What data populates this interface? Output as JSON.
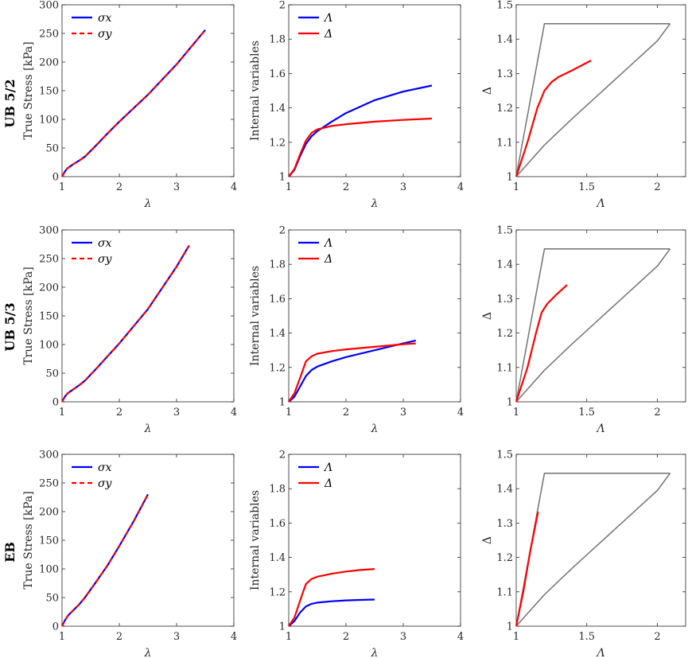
{
  "colors": {
    "sigma_x": "#0000ff",
    "sigma_y": "#ff0000",
    "Lambda": "#0000ff",
    "Delta": "#ff0000",
    "bound": "#7a7a7a",
    "axis": "#262626"
  },
  "rows": [
    {
      "label": "UB 5/2",
      "panels": [
        {
          "xlabel": "λ",
          "ylabel": "True Stress [kPa]"
        },
        {
          "xlabel": "λ",
          "ylabel": "Internal variables"
        },
        {
          "xlabel": "Λ",
          "ylabel": "Δ"
        }
      ]
    },
    {
      "label": "UB 5/3",
      "panels": [
        {
          "xlabel": "λ",
          "ylabel": "True Stress [kPa]"
        },
        {
          "xlabel": "λ",
          "ylabel": "Internal variables"
        },
        {
          "xlabel": "Λ",
          "ylabel": "Δ"
        }
      ]
    },
    {
      "label": "EB",
      "panels": [
        {
          "xlabel": "λ",
          "ylabel": "True Stress [kPa]"
        },
        {
          "xlabel": "λ",
          "ylabel": "Internal variables"
        },
        {
          "xlabel": "Λ",
          "ylabel": "Δ"
        }
      ]
    }
  ],
  "chart_data": [
    {
      "type": "line",
      "row": "UB 5/2",
      "xlabel": "λ",
      "ylabel": "True Stress [kPa]",
      "xlim": [
        1,
        4
      ],
      "ylim": [
        0,
        300
      ],
      "xticks": [
        "1",
        "2",
        "3",
        "4"
      ],
      "yticks": [
        "0",
        "50",
        "100",
        "150",
        "200",
        "250",
        "300"
      ],
      "legend": "top-left",
      "grid": false,
      "series": [
        {
          "name": "σx",
          "style": "solid",
          "color": "#0000ff",
          "x": [
            1,
            1.05,
            1.1,
            1.2,
            1.3,
            1.4,
            1.6,
            1.8,
            2.0,
            2.5,
            3.0,
            3.5
          ],
          "y": [
            0,
            9,
            15,
            22,
            28,
            35,
            55,
            76,
            96,
            143,
            196,
            256
          ]
        },
        {
          "name": "σy",
          "style": "dashed",
          "color": "#ff0000",
          "x": [
            1,
            1.05,
            1.1,
            1.2,
            1.3,
            1.4,
            1.6,
            1.8,
            2.0,
            2.5,
            3.0,
            3.5
          ],
          "y": [
            0,
            9,
            15,
            22,
            28,
            35,
            55,
            76,
            96,
            143,
            196,
            256
          ]
        }
      ]
    },
    {
      "type": "line",
      "row": "UB 5/2",
      "xlabel": "λ",
      "ylabel": "Internal variables",
      "xlim": [
        1,
        4
      ],
      "ylim": [
        1,
        2
      ],
      "xticks": [
        "1",
        "2",
        "3",
        "4"
      ],
      "yticks": [
        "1",
        "1.2",
        "1.4",
        "1.6",
        "1.8",
        "2"
      ],
      "legend": "top-left",
      "grid": false,
      "series": [
        {
          "name": "Λ",
          "style": "solid",
          "color": "#0000ff",
          "x": [
            1,
            1.1,
            1.2,
            1.3,
            1.4,
            1.5,
            1.75,
            2.0,
            2.5,
            3.0,
            3.5
          ],
          "y": [
            1,
            1.04,
            1.12,
            1.19,
            1.235,
            1.265,
            1.32,
            1.37,
            1.445,
            1.495,
            1.53
          ]
        },
        {
          "name": "Δ",
          "style": "solid",
          "color": "#ff0000",
          "x": [
            1,
            1.1,
            1.2,
            1.3,
            1.4,
            1.5,
            1.75,
            2.0,
            2.5,
            3.0,
            3.5
          ],
          "y": [
            1,
            1.045,
            1.13,
            1.21,
            1.255,
            1.275,
            1.295,
            1.305,
            1.32,
            1.33,
            1.338
          ]
        }
      ]
    },
    {
      "type": "line",
      "row": "UB 5/2",
      "xlabel": "Λ",
      "ylabel": "Δ",
      "xlim": [
        1,
        2.2
      ],
      "ylim": [
        1,
        1.5
      ],
      "xticks": [
        "1",
        "1.5",
        "2"
      ],
      "yticks": [
        "1",
        "1.1",
        "1.2",
        "1.3",
        "1.4",
        "1.5"
      ],
      "grid": false,
      "series": [
        {
          "style": "solid",
          "color": "#7a7a7a",
          "x": [
            1,
            1.2,
            2.09
          ],
          "y": [
            1,
            1.445,
            1.445
          ]
        },
        {
          "style": "solid",
          "color": "#7a7a7a",
          "x": [
            1,
            1.2,
            1.4,
            1.6,
            1.8,
            2.0,
            2.09
          ],
          "y": [
            1,
            1.092,
            1.17,
            1.245,
            1.32,
            1.395,
            1.445
          ]
        },
        {
          "style": "solid",
          "color": "#ff0000",
          "x": [
            1,
            1.08,
            1.15,
            1.2,
            1.25,
            1.3,
            1.4,
            1.53
          ],
          "y": [
            1,
            1.1,
            1.2,
            1.25,
            1.275,
            1.29,
            1.31,
            1.338
          ]
        }
      ]
    },
    {
      "type": "line",
      "row": "UB 5/3",
      "xlabel": "λ",
      "ylabel": "True Stress [kPa]",
      "xlim": [
        1,
        4
      ],
      "ylim": [
        0,
        300
      ],
      "xticks": [
        "1",
        "2",
        "3",
        "4"
      ],
      "yticks": [
        "0",
        "50",
        "100",
        "150",
        "200",
        "250",
        "300"
      ],
      "legend": "top-left",
      "grid": false,
      "series": [
        {
          "name": "σx",
          "style": "solid",
          "color": "#0000ff",
          "x": [
            1,
            1.05,
            1.1,
            1.2,
            1.3,
            1.4,
            1.6,
            1.8,
            2.0,
            2.5,
            3.0,
            3.22
          ],
          "y": [
            0,
            9,
            15,
            22,
            29,
            37,
            58,
            80,
            102,
            162,
            236,
            273
          ]
        },
        {
          "name": "σy",
          "style": "dashed",
          "color": "#ff0000",
          "x": [
            1,
            1.05,
            1.1,
            1.2,
            1.3,
            1.4,
            1.6,
            1.8,
            2.0,
            2.5,
            3.0,
            3.22
          ],
          "y": [
            0,
            9,
            15,
            22,
            29,
            37,
            58,
            80,
            102,
            162,
            236,
            273
          ]
        }
      ]
    },
    {
      "type": "line",
      "row": "UB 5/3",
      "xlabel": "λ",
      "ylabel": "Internal variables",
      "xlim": [
        1,
        4
      ],
      "ylim": [
        1,
        2
      ],
      "xticks": [
        "1",
        "2",
        "3",
        "4"
      ],
      "yticks": [
        "1",
        "1.2",
        "1.4",
        "1.6",
        "1.8",
        "2"
      ],
      "legend": "top-left",
      "grid": false,
      "series": [
        {
          "name": "Λ",
          "style": "solid",
          "color": "#0000ff",
          "x": [
            1,
            1.1,
            1.2,
            1.3,
            1.4,
            1.5,
            1.75,
            2.0,
            2.5,
            3.0,
            3.22
          ],
          "y": [
            1,
            1.03,
            1.09,
            1.15,
            1.185,
            1.205,
            1.235,
            1.26,
            1.3,
            1.34,
            1.357
          ]
        },
        {
          "name": "Δ",
          "style": "solid",
          "color": "#ff0000",
          "x": [
            1,
            1.1,
            1.2,
            1.3,
            1.4,
            1.5,
            1.75,
            2.0,
            2.5,
            3.0,
            3.22
          ],
          "y": [
            1,
            1.05,
            1.14,
            1.235,
            1.265,
            1.28,
            1.295,
            1.305,
            1.32,
            1.335,
            1.34
          ]
        }
      ]
    },
    {
      "type": "line",
      "row": "UB 5/3",
      "xlabel": "Λ",
      "ylabel": "Δ",
      "xlim": [
        1,
        2.2
      ],
      "ylim": [
        1,
        1.5
      ],
      "xticks": [
        "1",
        "1.5",
        "2"
      ],
      "yticks": [
        "1",
        "1.1",
        "1.2",
        "1.3",
        "1.4",
        "1.5"
      ],
      "grid": false,
      "series": [
        {
          "style": "solid",
          "color": "#7a7a7a",
          "x": [
            1,
            1.2,
            2.09
          ],
          "y": [
            1,
            1.445,
            1.445
          ]
        },
        {
          "style": "solid",
          "color": "#7a7a7a",
          "x": [
            1,
            1.2,
            1.4,
            1.6,
            1.8,
            2.0,
            2.09
          ],
          "y": [
            1,
            1.092,
            1.17,
            1.245,
            1.32,
            1.395,
            1.445
          ]
        },
        {
          "style": "solid",
          "color": "#ff0000",
          "x": [
            1,
            1.08,
            1.14,
            1.18,
            1.22,
            1.28,
            1.36
          ],
          "y": [
            1,
            1.1,
            1.2,
            1.26,
            1.285,
            1.31,
            1.34
          ]
        }
      ]
    },
    {
      "type": "line",
      "row": "EB",
      "xlabel": "λ",
      "ylabel": "True Stress [kPa]",
      "xlim": [
        1,
        4
      ],
      "ylim": [
        0,
        300
      ],
      "xticks": [
        "1",
        "2",
        "3",
        "4"
      ],
      "yticks": [
        "0",
        "50",
        "100",
        "150",
        "200",
        "250",
        "300"
      ],
      "legend": "top-left",
      "grid": false,
      "series": [
        {
          "name": "σx",
          "style": "solid",
          "color": "#0000ff",
          "x": [
            1,
            1.05,
            1.1,
            1.2,
            1.3,
            1.4,
            1.6,
            1.8,
            2.0,
            2.25,
            2.5
          ],
          "y": [
            0,
            10,
            18,
            28,
            38,
            50,
            78,
            107,
            140,
            183,
            230
          ]
        },
        {
          "name": "σy",
          "style": "dashed",
          "color": "#ff0000",
          "x": [
            1,
            1.05,
            1.1,
            1.2,
            1.3,
            1.4,
            1.6,
            1.8,
            2.0,
            2.25,
            2.5
          ],
          "y": [
            0,
            10,
            18,
            28,
            38,
            50,
            78,
            107,
            140,
            183,
            230
          ]
        }
      ]
    },
    {
      "type": "line",
      "row": "EB",
      "xlabel": "λ",
      "ylabel": "Internal variables",
      "xlim": [
        1,
        4
      ],
      "ylim": [
        1,
        2
      ],
      "xticks": [
        "1",
        "2",
        "3",
        "4"
      ],
      "yticks": [
        "1",
        "1.2",
        "1.4",
        "1.6",
        "1.8",
        "2"
      ],
      "legend": "top-left",
      "grid": false,
      "series": [
        {
          "name": "Λ",
          "style": "solid",
          "color": "#0000ff",
          "x": [
            1,
            1.1,
            1.2,
            1.3,
            1.4,
            1.5,
            1.75,
            2.0,
            2.25,
            2.5
          ],
          "y": [
            1,
            1.03,
            1.08,
            1.115,
            1.13,
            1.137,
            1.145,
            1.15,
            1.153,
            1.155
          ]
        },
        {
          "name": "Δ",
          "style": "solid",
          "color": "#ff0000",
          "x": [
            1,
            1.1,
            1.2,
            1.3,
            1.4,
            1.5,
            1.75,
            2.0,
            2.25,
            2.5
          ],
          "y": [
            1,
            1.05,
            1.15,
            1.245,
            1.275,
            1.288,
            1.305,
            1.318,
            1.327,
            1.333
          ]
        }
      ]
    },
    {
      "type": "line",
      "row": "EB",
      "xlabel": "Λ",
      "ylabel": "Δ",
      "xlim": [
        1,
        2.2
      ],
      "ylim": [
        1,
        1.5
      ],
      "xticks": [
        "1",
        "1.5",
        "2"
      ],
      "yticks": [
        "1",
        "1.1",
        "1.2",
        "1.3",
        "1.4",
        "1.5"
      ],
      "grid": false,
      "series": [
        {
          "style": "solid",
          "color": "#7a7a7a",
          "x": [
            1,
            1.2,
            2.09
          ],
          "y": [
            1,
            1.445,
            1.445
          ]
        },
        {
          "style": "solid",
          "color": "#7a7a7a",
          "x": [
            1,
            1.2,
            1.4,
            1.6,
            1.8,
            2.0,
            2.09
          ],
          "y": [
            1,
            1.092,
            1.17,
            1.245,
            1.32,
            1.395,
            1.445
          ]
        },
        {
          "style": "solid",
          "color": "#ff0000",
          "x": [
            1,
            1.05,
            1.1,
            1.155
          ],
          "y": [
            1,
            1.1,
            1.22,
            1.333
          ]
        }
      ]
    }
  ]
}
